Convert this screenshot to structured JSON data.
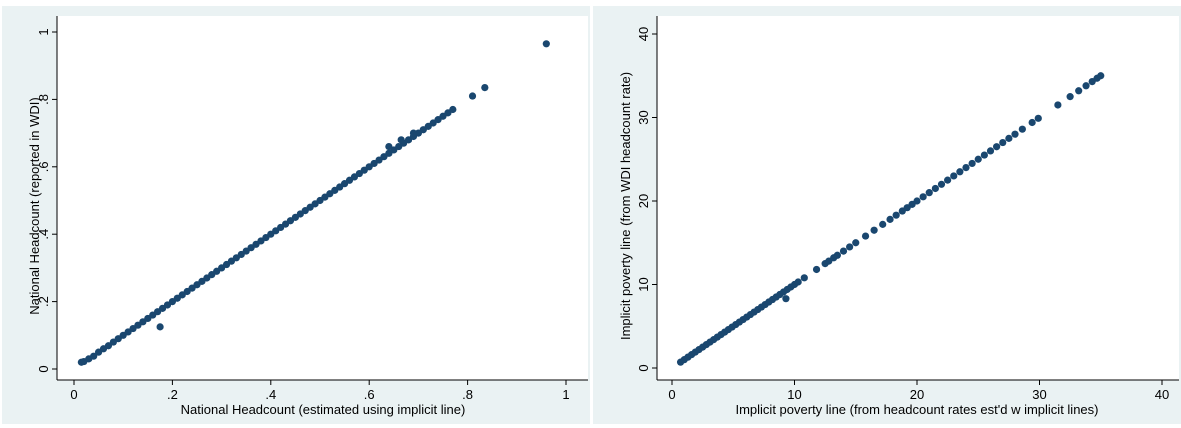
{
  "chart_data": [
    {
      "type": "scatter",
      "xlabel": "National Headcount (estimated using implicit line)",
      "ylabel": "National Headcount (reported in WDI)",
      "xlim": [
        0,
        1
      ],
      "ylim": [
        0,
        1
      ],
      "xticks": [
        "0",
        ".2",
        ".4",
        ".6",
        ".8",
        "1"
      ],
      "yticks": [
        "0",
        ".2",
        ".4",
        ".6",
        ".8",
        "1"
      ],
      "xtick_values": [
        0,
        0.2,
        0.4,
        0.6,
        0.8,
        1
      ],
      "ytick_values": [
        0,
        0.2,
        0.4,
        0.6,
        0.8,
        1
      ],
      "grid": false,
      "marker_color": "#1a476f",
      "series": [
        {
          "points": [
            [
              0.015,
              0.02
            ],
            [
              0.02,
              0.022
            ],
            [
              0.03,
              0.03
            ],
            [
              0.04,
              0.038
            ],
            [
              0.05,
              0.05
            ],
            [
              0.06,
              0.06
            ],
            [
              0.07,
              0.069
            ],
            [
              0.08,
              0.08
            ],
            [
              0.09,
              0.09
            ],
            [
              0.1,
              0.1
            ],
            [
              0.11,
              0.11
            ],
            [
              0.12,
              0.12
            ],
            [
              0.13,
              0.13
            ],
            [
              0.14,
              0.14
            ],
            [
              0.15,
              0.15
            ],
            [
              0.16,
              0.16
            ],
            [
              0.17,
              0.17
            ],
            [
              0.175,
              0.125
            ],
            [
              0.18,
              0.18
            ],
            [
              0.19,
              0.19
            ],
            [
              0.2,
              0.2
            ],
            [
              0.21,
              0.21
            ],
            [
              0.22,
              0.22
            ],
            [
              0.23,
              0.23
            ],
            [
              0.24,
              0.24
            ],
            [
              0.25,
              0.25
            ],
            [
              0.26,
              0.26
            ],
            [
              0.27,
              0.27
            ],
            [
              0.28,
              0.28
            ],
            [
              0.29,
              0.29
            ],
            [
              0.3,
              0.3
            ],
            [
              0.31,
              0.31
            ],
            [
              0.32,
              0.32
            ],
            [
              0.33,
              0.33
            ],
            [
              0.34,
              0.34
            ],
            [
              0.35,
              0.35
            ],
            [
              0.36,
              0.36
            ],
            [
              0.37,
              0.37
            ],
            [
              0.38,
              0.38
            ],
            [
              0.39,
              0.39
            ],
            [
              0.4,
              0.4
            ],
            [
              0.41,
              0.41
            ],
            [
              0.42,
              0.42
            ],
            [
              0.43,
              0.43
            ],
            [
              0.44,
              0.44
            ],
            [
              0.45,
              0.45
            ],
            [
              0.46,
              0.46
            ],
            [
              0.47,
              0.47
            ],
            [
              0.48,
              0.48
            ],
            [
              0.49,
              0.49
            ],
            [
              0.5,
              0.5
            ],
            [
              0.51,
              0.51
            ],
            [
              0.52,
              0.52
            ],
            [
              0.53,
              0.53
            ],
            [
              0.54,
              0.54
            ],
            [
              0.55,
              0.55
            ],
            [
              0.56,
              0.56
            ],
            [
              0.57,
              0.57
            ],
            [
              0.58,
              0.58
            ],
            [
              0.59,
              0.59
            ],
            [
              0.6,
              0.6
            ],
            [
              0.61,
              0.61
            ],
            [
              0.62,
              0.62
            ],
            [
              0.63,
              0.63
            ],
            [
              0.64,
              0.64
            ],
            [
              0.65,
              0.65
            ],
            [
              0.66,
              0.66
            ],
            [
              0.67,
              0.67
            ],
            [
              0.68,
              0.68
            ],
            [
              0.69,
              0.69
            ],
            [
              0.7,
              0.7
            ],
            [
              0.71,
              0.71
            ],
            [
              0.72,
              0.72
            ],
            [
              0.73,
              0.73
            ],
            [
              0.74,
              0.74
            ],
            [
              0.75,
              0.75
            ],
            [
              0.76,
              0.76
            ],
            [
              0.77,
              0.77
            ],
            [
              0.64,
              0.66
            ],
            [
              0.665,
              0.68
            ],
            [
              0.69,
              0.7
            ],
            [
              0.81,
              0.81
            ],
            [
              0.835,
              0.835
            ],
            [
              0.96,
              0.965
            ]
          ]
        }
      ]
    },
    {
      "type": "scatter",
      "xlabel": "Implicit poverty line (from headcount rates est'd w implicit lines)",
      "ylabel": "Implicit poverty line (from WDI headcount rate)",
      "xlim": [
        0,
        40
      ],
      "ylim": [
        0,
        40
      ],
      "xticks": [
        "0",
        "10",
        "20",
        "30",
        "40"
      ],
      "yticks": [
        "0",
        "10",
        "20",
        "30",
        "40"
      ],
      "xtick_values": [
        0,
        10,
        20,
        30,
        40
      ],
      "ytick_values": [
        0,
        10,
        20,
        30,
        40
      ],
      "grid": false,
      "marker_color": "#1a476f",
      "series": [
        {
          "points": [
            [
              0.7,
              0.7
            ],
            [
              1.0,
              1.0
            ],
            [
              1.3,
              1.3
            ],
            [
              1.6,
              1.6
            ],
            [
              1.9,
              1.9
            ],
            [
              2.2,
              2.2
            ],
            [
              2.5,
              2.5
            ],
            [
              2.8,
              2.8
            ],
            [
              3.1,
              3.1
            ],
            [
              3.4,
              3.4
            ],
            [
              3.7,
              3.7
            ],
            [
              4.0,
              4.0
            ],
            [
              4.3,
              4.3
            ],
            [
              4.6,
              4.6
            ],
            [
              4.9,
              4.9
            ],
            [
              5.2,
              5.2
            ],
            [
              5.5,
              5.5
            ],
            [
              5.8,
              5.8
            ],
            [
              6.1,
              6.1
            ],
            [
              6.4,
              6.4
            ],
            [
              6.7,
              6.7
            ],
            [
              7.0,
              7.0
            ],
            [
              7.3,
              7.3
            ],
            [
              7.6,
              7.6
            ],
            [
              7.9,
              7.9
            ],
            [
              8.2,
              8.2
            ],
            [
              8.5,
              8.5
            ],
            [
              8.8,
              8.8
            ],
            [
              9.1,
              9.1
            ],
            [
              9.4,
              9.4
            ],
            [
              9.3,
              8.3
            ],
            [
              9.7,
              9.7
            ],
            [
              10.0,
              10.0
            ],
            [
              10.3,
              10.3
            ],
            [
              10.8,
              10.8
            ],
            [
              11.8,
              11.8
            ],
            [
              12.5,
              12.5
            ],
            [
              12.8,
              12.8
            ],
            [
              13.2,
              13.2
            ],
            [
              13.5,
              13.5
            ],
            [
              14.0,
              14.0
            ],
            [
              14.5,
              14.5
            ],
            [
              15.0,
              15.0
            ],
            [
              15.8,
              15.8
            ],
            [
              16.5,
              16.5
            ],
            [
              17.2,
              17.2
            ],
            [
              17.8,
              17.8
            ],
            [
              18.3,
              18.3
            ],
            [
              18.8,
              18.8
            ],
            [
              19.2,
              19.2
            ],
            [
              19.6,
              19.6
            ],
            [
              20.0,
              20.0
            ],
            [
              20.5,
              20.5
            ],
            [
              21.0,
              21.0
            ],
            [
              21.5,
              21.5
            ],
            [
              22.0,
              22.0
            ],
            [
              22.5,
              22.5
            ],
            [
              23.0,
              23.0
            ],
            [
              23.5,
              23.5
            ],
            [
              24.0,
              24.0
            ],
            [
              24.5,
              24.5
            ],
            [
              25.0,
              25.0
            ],
            [
              25.5,
              25.5
            ],
            [
              26.0,
              26.0
            ],
            [
              26.5,
              26.5
            ],
            [
              27.0,
              27.0
            ],
            [
              27.5,
              27.5
            ],
            [
              28.0,
              28.0
            ],
            [
              28.6,
              28.6
            ],
            [
              29.4,
              29.4
            ],
            [
              29.9,
              29.9
            ],
            [
              31.5,
              31.5
            ],
            [
              32.5,
              32.5
            ],
            [
              33.2,
              33.2
            ],
            [
              33.8,
              33.8
            ],
            [
              34.3,
              34.3
            ],
            [
              34.7,
              34.7
            ],
            [
              35.0,
              35.0
            ]
          ]
        }
      ]
    }
  ]
}
